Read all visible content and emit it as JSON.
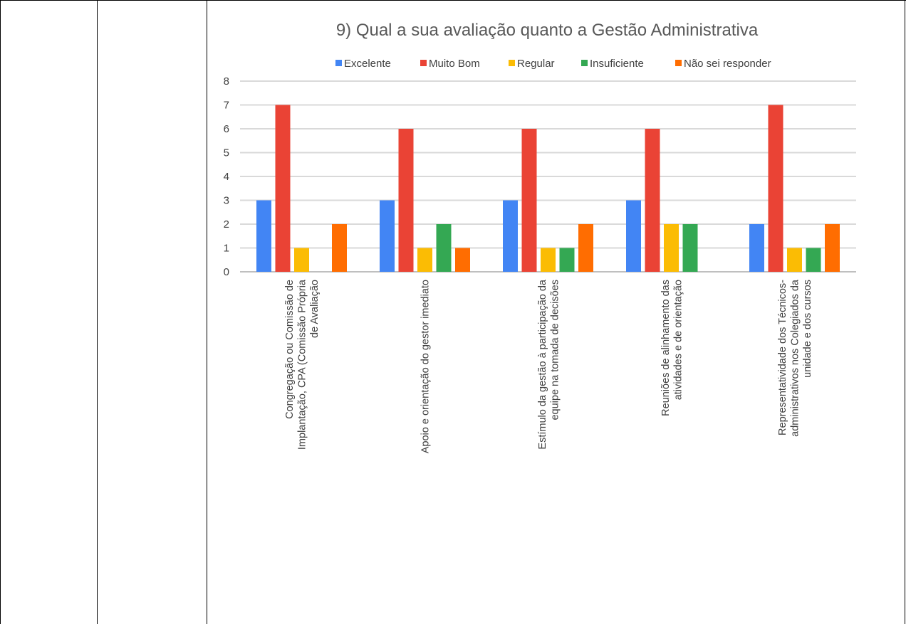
{
  "chart_data": {
    "type": "bar",
    "title": "9) Qual a sua avaliação quanto a Gestão Administrativa",
    "xlabel": "",
    "ylabel": "",
    "ylim": [
      0,
      8
    ],
    "yticks": [
      0,
      1,
      2,
      3,
      4,
      5,
      6,
      7,
      8
    ],
    "grid": true,
    "legend_position": "top",
    "categories": [
      [
        "Congregação ou Comissão de",
        "Implantação, CPA (Comissão Própria",
        "de Avaliação"
      ],
      [
        "Apoio e orientação do gestor imediato"
      ],
      [
        "Estímulo da gestão à participação da",
        "equipe na tomada de decisões"
      ],
      [
        "Reuniões de alinhamento das",
        "atividades e de orientação"
      ],
      [
        "Representatividade dos Técnicos-",
        "administrativos nos Colegiados da",
        "unidade e dos cursos"
      ]
    ],
    "series": [
      {
        "name": "Excelente",
        "color": "#4285F4",
        "values": [
          3,
          3,
          3,
          3,
          2
        ]
      },
      {
        "name": "Muito Bom",
        "color": "#EA4335",
        "values": [
          7,
          6,
          6,
          6,
          7
        ]
      },
      {
        "name": "Regular",
        "color": "#FBBC04",
        "values": [
          1,
          1,
          1,
          2,
          1
        ]
      },
      {
        "name": "Insuficiente",
        "color": "#34A853",
        "values": [
          0,
          2,
          1,
          2,
          1
        ]
      },
      {
        "name": "Não sei responder",
        "color": "#FF6D01",
        "values": [
          2,
          1,
          2,
          0,
          2
        ]
      }
    ]
  }
}
